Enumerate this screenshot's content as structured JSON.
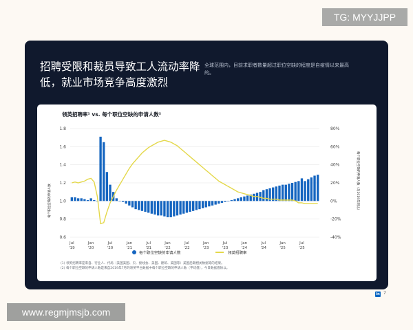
{
  "watermark_tag": "TG: MYYJJPP",
  "watermark_url": "www.regmjmsjb.com",
  "headline": "招聘受限和裁员导致工人流动率降低，就业市场竞争高度激烈",
  "subtext": "全球范围内，目前求职者数量超过职位空缺的程度是自疫情以来最高的。",
  "brand_mark": "in",
  "page_number": "7",
  "footnotes": [
    "(1)  领英招聘率是来自、行业人、代局（美国美国、贝、接线会、美国、建筑、美国等）美国后期相关数据等的结果。",
    "(2)  每个职位空缺的申请人数是来自2019年7月的领英平台数据中每个职位空缺的申请人数（平均值），今日数据值除以。"
  ],
  "colors": {
    "card_bg": "#10192d",
    "bar": "#1565c0",
    "line": "#e4d84a"
  },
  "chart_data": {
    "type": "bar",
    "title": "领英招聘率¹ vs. 每个职位空缺的申请人数²",
    "ylabel_left": "每个职位空缺的申请人数",
    "ylabel_right": "每个职位空缺的申请人数（与2019年同比）",
    "ylim_left": [
      0.6,
      1.8
    ],
    "ylim_right": [
      -40,
      80
    ],
    "y_ticks_left": [
      "0.6",
      "0.8",
      "1.0",
      "1.2",
      "1.4",
      "1.6",
      "1.8"
    ],
    "y_ticks_right": [
      "-40%",
      "-20%",
      "0%",
      "20%",
      "40%",
      "60%",
      "80%"
    ],
    "x_ticks": [
      {
        "month": "Jul",
        "year": "'19",
        "i": 0
      },
      {
        "month": "Jan",
        "year": "'20",
        "i": 6
      },
      {
        "month": "Jul",
        "year": "'20",
        "i": 12
      },
      {
        "month": "Jan",
        "year": "'21",
        "i": 18
      },
      {
        "month": "Jul",
        "year": "'21",
        "i": 24
      },
      {
        "month": "Jan",
        "year": "'22",
        "i": 30
      },
      {
        "month": "Jul",
        "year": "'22",
        "i": 36
      },
      {
        "month": "Jan",
        "year": "'23",
        "i": 42
      },
      {
        "month": "Jul",
        "year": "'23",
        "i": 48
      },
      {
        "month": "Jan",
        "year": "'24",
        "i": 54
      },
      {
        "month": "Jul",
        "year": "'24",
        "i": 60
      },
      {
        "month": "Jan",
        "year": "'25",
        "i": 66
      },
      {
        "month": "Jul",
        "year": "'25",
        "i": 72
      }
    ],
    "legend": "bottom",
    "series": [
      {
        "name": "每个职位空缺的申请人数",
        "type": "bar",
        "axis": "left",
        "values": [
          1.04,
          1.04,
          1.03,
          1.03,
          1.02,
          1.01,
          1.03,
          1.01,
          1.0,
          1.71,
          1.65,
          1.32,
          1.18,
          1.1,
          1.03,
          1.0,
          0.99,
          0.97,
          0.95,
          0.93,
          0.91,
          0.9,
          0.89,
          0.88,
          0.87,
          0.86,
          0.85,
          0.84,
          0.84,
          0.83,
          0.82,
          0.82,
          0.83,
          0.84,
          0.85,
          0.86,
          0.87,
          0.88,
          0.89,
          0.9,
          0.91,
          0.92,
          0.93,
          0.94,
          0.95,
          0.96,
          0.97,
          0.98,
          0.99,
          1.0,
          1.01,
          1.02,
          1.03,
          1.04,
          1.05,
          1.06,
          1.07,
          1.08,
          1.09,
          1.1,
          1.12,
          1.13,
          1.14,
          1.15,
          1.16,
          1.17,
          1.18,
          1.18,
          1.19,
          1.2,
          1.21,
          1.22,
          1.25,
          1.22,
          1.24,
          1.26,
          1.28,
          1.29
        ]
      },
      {
        "name": "领英招聘率",
        "type": "line",
        "axis": "right",
        "values": [
          20,
          21,
          20,
          21,
          22,
          24,
          25,
          21,
          5,
          -25,
          -24,
          -12,
          -2,
          5,
          12,
          18,
          24,
          30,
          36,
          41,
          45,
          49,
          53,
          56,
          59,
          61,
          63,
          65,
          66,
          67,
          66,
          65,
          63,
          61,
          58,
          55,
          52,
          49,
          46,
          43,
          40,
          37,
          34,
          31,
          28,
          25,
          22,
          20,
          18,
          16,
          14,
          12,
          10,
          9,
          8,
          7,
          6,
          5,
          5,
          4,
          3,
          3,
          2,
          2,
          2,
          1,
          1,
          1,
          1,
          1,
          0,
          -2,
          -2,
          -3,
          -3,
          -3,
          -3,
          -3
        ]
      }
    ]
  }
}
